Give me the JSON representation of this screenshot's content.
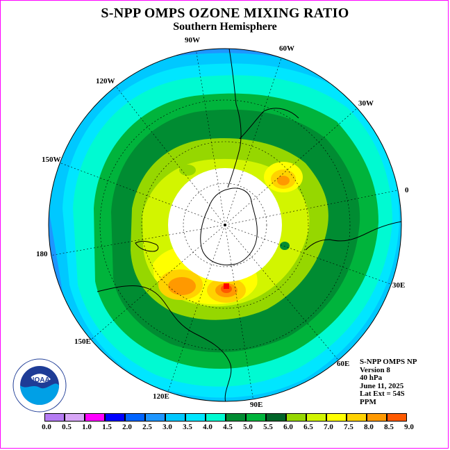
{
  "title": "S-NPP OMPS OZONE MIXING RATIO",
  "subtitle": "Southern Hemisphere",
  "longitude_labels": {
    "lon_90w": "90W",
    "lon_60w": "60W",
    "lon_120w": "120W",
    "lon_30w": "30W",
    "lon_150w": "150W",
    "lon_0": "0",
    "lon_180": "180",
    "lon_30e": "30E",
    "lon_150e": "150E",
    "lon_60e": "60E",
    "lon_120e": "120E",
    "lon_90e": "90E"
  },
  "info": {
    "line1": "S-NPP OMPS NP",
    "line2": "Version 8",
    "line3": "40 hPa",
    "line4": "June 11, 2025",
    "line5": "Lat Ext = 54S",
    "line6": "PPM"
  },
  "logo_text": "NOAA",
  "colorbar": {
    "ticks": [
      "0.0",
      "0.5",
      "1.0",
      "1.5",
      "2.0",
      "2.5",
      "3.0",
      "3.5",
      "4.0",
      "4.5",
      "5.0",
      "5.5",
      "6.0",
      "6.5",
      "7.0",
      "7.5",
      "8.0",
      "8.5",
      "9.0"
    ],
    "colors": [
      "#b57cf3",
      "#d8a6f7",
      "#ff00ff",
      "#0000ff",
      "#0064ff",
      "#1e96ff",
      "#00c8ff",
      "#00e6ff",
      "#00fad2",
      "#008c32",
      "#00b43c",
      "#006428",
      "#96d700",
      "#d2f500",
      "#ffff00",
      "#ffd200",
      "#ff9900",
      "#ff5a00",
      "#ff0000",
      "#8c5a3c"
    ]
  },
  "colors": {
    "border": "#ff00ff",
    "polar_cap": "#ffffff"
  }
}
